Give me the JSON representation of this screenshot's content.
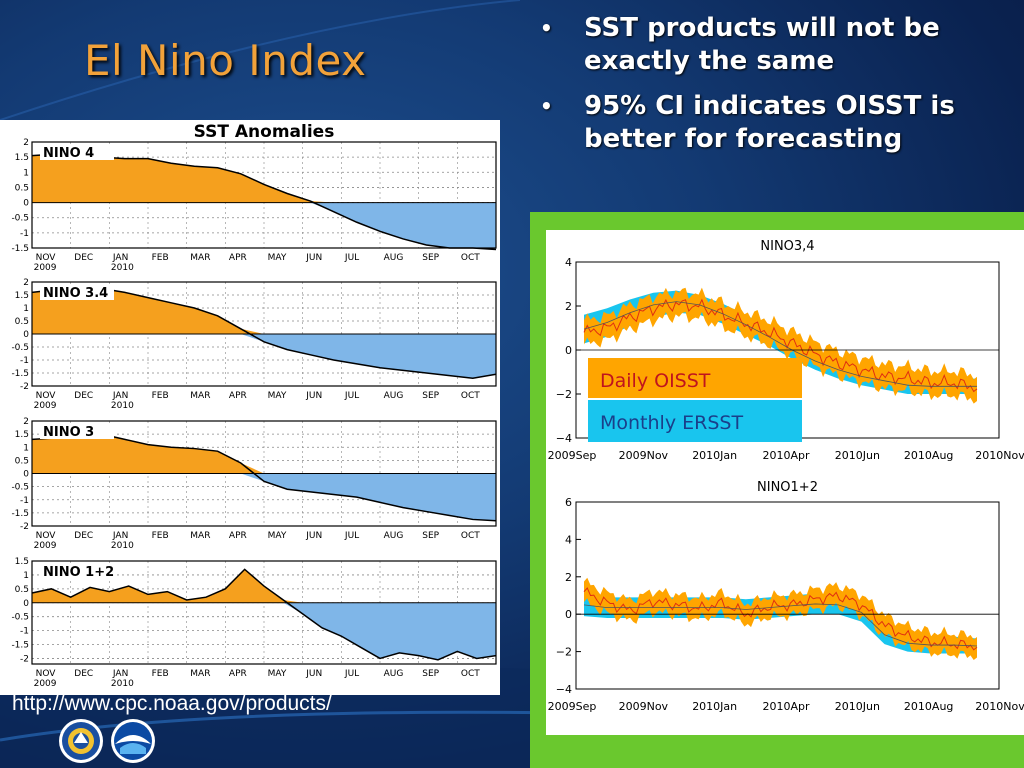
{
  "slide": {
    "title": "El Nino Index",
    "bullets": [
      "SST products will not be exactly the same",
      "95% CI indicates OISST is better for forecasting"
    ],
    "source_url": "http://www.cpc.noaa.gov/products/"
  },
  "colors": {
    "positive_fill": "#f5a01e",
    "negative_fill": "#7fb6e8",
    "oisst": "#ffa500",
    "ersst_band": "#19c5ee",
    "red_line": "#e03010",
    "title": "#f2a23a",
    "panel_border": "#6ac82e"
  },
  "icons": [
    "doc-seal-icon",
    "noaa-logo-icon"
  ],
  "chart_data": [
    {
      "type": "area",
      "title": "SST Anomalies",
      "x_labels_top": [
        "NOV",
        "DEC",
        "JAN",
        "FEB",
        "MAR",
        "APR",
        "MAY",
        "JUN",
        "JUL",
        "AUG",
        "SEP",
        "OCT"
      ],
      "x_labels_bottom": [
        "2009",
        "",
        "2010",
        "",
        "",
        "",
        "",
        "",
        "",
        "",
        "",
        ""
      ],
      "panels": [
        {
          "name": "NINO 4",
          "yticks": [
            "2",
            "1.5",
            "1",
            "0.5",
            "0",
            "-0.5",
            "-1",
            "-1.5"
          ],
          "ylim": [
            -1.5,
            2
          ],
          "values": [
            1.55,
            1.6,
            1.55,
            1.5,
            1.45,
            1.45,
            1.3,
            1.2,
            1.15,
            0.95,
            0.6,
            0.3,
            0.05,
            -0.3,
            -0.65,
            -0.95,
            -1.2,
            -1.4,
            -1.5,
            -1.5,
            -1.55
          ]
        },
        {
          "name": "NINO 3.4",
          "yticks": [
            "2",
            "1.5",
            "1",
            "0.5",
            "0",
            "-0.5",
            "-1",
            "-1.5",
            "-2"
          ],
          "ylim": [
            -2,
            2
          ],
          "values": [
            1.6,
            1.7,
            1.8,
            1.75,
            1.6,
            1.4,
            1.2,
            1.0,
            0.7,
            0.2,
            -0.3,
            -0.6,
            -0.8,
            -1.0,
            -1.15,
            -1.3,
            -1.4,
            -1.5,
            -1.6,
            -1.7,
            -1.55
          ]
        },
        {
          "name": "NINO 3",
          "yticks": [
            "2",
            "1.5",
            "1",
            "0.5",
            "0",
            "-0.5",
            "-1",
            "-1.5",
            "-2"
          ],
          "ylim": [
            -2,
            2
          ],
          "values": [
            1.3,
            1.35,
            1.45,
            1.5,
            1.3,
            1.1,
            1.0,
            0.95,
            0.85,
            0.4,
            -0.3,
            -0.6,
            -0.7,
            -0.8,
            -0.9,
            -1.1,
            -1.3,
            -1.45,
            -1.6,
            -1.75,
            -1.8
          ]
        },
        {
          "name": "NINO 1+2",
          "yticks": [
            "1.5",
            "1",
            "0.5",
            "0",
            "-0.5",
            "-1",
            "-1.5",
            "-2"
          ],
          "ylim": [
            -2.2,
            1.5
          ],
          "values": [
            0.35,
            0.5,
            0.2,
            0.55,
            0.4,
            0.6,
            0.3,
            0.4,
            0.1,
            0.2,
            0.5,
            1.2,
            0.6,
            0.1,
            -0.4,
            -0.9,
            -1.2,
            -1.6,
            -2.0,
            -1.8,
            -1.9,
            -2.05,
            -1.75,
            -2.0,
            -1.9
          ]
        }
      ]
    },
    {
      "type": "line",
      "title": "NINO3,4",
      "x_ticks": [
        "2009Sep",
        "2009Nov",
        "2010Jan",
        "2010Apr",
        "2010Jun",
        "2010Aug",
        "2010Nov"
      ],
      "ylim": [
        -4,
        4
      ],
      "yticks": [
        "4",
        "2",
        "0",
        "−2",
        "−4"
      ],
      "legend": [
        "Daily OISST",
        "Monthly ERSST"
      ],
      "series": [
        {
          "name": "Daily OISST",
          "values": [
            0.8,
            1.0,
            1.5,
            1.9,
            2.1,
            2.0,
            1.6,
            1.2,
            0.8,
            0.3,
            -0.2,
            -0.6,
            -0.9,
            -1.2,
            -1.3,
            -1.5,
            -1.5,
            -1.7
          ]
        },
        {
          "name": "Monthly ERSST",
          "upper": [
            1.6,
            1.9,
            2.3,
            2.6,
            2.7,
            2.5,
            2.1,
            1.6,
            1.0,
            0.4,
            -0.1,
            -0.5,
            -0.8,
            -1.0,
            -1.2,
            -1.3,
            -1.3,
            -1.3
          ],
          "lower": [
            0.3,
            0.6,
            1.1,
            1.5,
            1.7,
            1.6,
            1.2,
            0.7,
            0.2,
            -0.4,
            -0.9,
            -1.3,
            -1.6,
            -1.8,
            -2.0,
            -2.0,
            -2.0,
            -2.0
          ]
        }
      ]
    },
    {
      "type": "line",
      "title": "NINO1+2",
      "x_ticks": [
        "2009Sep",
        "2009Nov",
        "2010Jan",
        "2010Apr",
        "2010Jun",
        "2010Aug",
        "2010Nov"
      ],
      "ylim": [
        -4,
        6
      ],
      "yticks": [
        "6",
        "4",
        "2",
        "0",
        "−2",
        "−4"
      ],
      "series": [
        {
          "name": "Daily OISST",
          "values": [
            1.2,
            0.6,
            0.2,
            0.7,
            0.5,
            0.3,
            0.6,
            0.0,
            0.4,
            0.5,
            0.8,
            1.0,
            0.5,
            -0.6,
            -1.2,
            -1.5,
            -1.6,
            -1.7
          ]
        },
        {
          "name": "Monthly ERSST",
          "upper": [
            1.1,
            0.9,
            0.9,
            0.9,
            0.9,
            0.9,
            0.9,
            0.8,
            0.9,
            1.0,
            1.1,
            1.0,
            0.6,
            -0.6,
            -1.1,
            -1.2,
            -1.2,
            -1.3
          ],
          "lower": [
            -0.1,
            -0.2,
            -0.2,
            -0.2,
            -0.2,
            -0.2,
            -0.2,
            -0.3,
            -0.2,
            -0.1,
            0.0,
            0.0,
            -0.4,
            -1.6,
            -2.0,
            -2.1,
            -2.1,
            -2.1
          ]
        }
      ]
    }
  ]
}
